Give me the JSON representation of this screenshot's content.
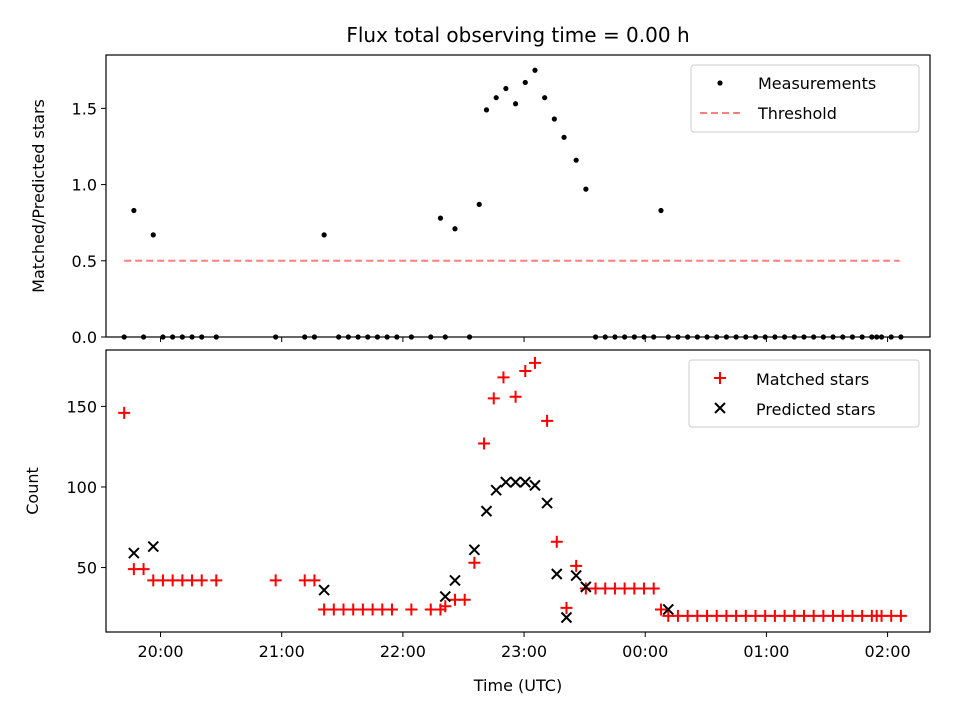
{
  "title": "Flux total observing time = 0.00 h",
  "colors": {
    "measurement": "#000000",
    "threshold": "#ff7f7f",
    "matched": "#ff0000",
    "predicted": "#000000"
  },
  "chart_data": [
    {
      "type": "scatter",
      "ylabel": "Matched/Predicted stars",
      "xlim": [
        -0.45,
        6.35
      ],
      "ylim": [
        0,
        1.85
      ],
      "yticks": [
        0.0,
        0.5,
        1.0,
        1.5
      ],
      "ytick_labels": [
        "0.0",
        "0.5",
        "1.0",
        "1.5"
      ],
      "legend": {
        "placement": "top-right",
        "entries": [
          "Measurements",
          "Threshold"
        ]
      },
      "threshold": {
        "name": "Threshold",
        "x": [
          -0.3,
          6.1
        ],
        "y": 0.5
      },
      "series": [
        {
          "name": "Measurements",
          "marker": "dot",
          "x": [
            -0.3,
            -0.22,
            -0.14,
            -0.06,
            0.02,
            0.1,
            0.18,
            0.26,
            0.34,
            0.46,
            0.95,
            1.19,
            1.27,
            1.35,
            1.47,
            1.55,
            1.63,
            1.71,
            1.79,
            1.87,
            1.95,
            2.07,
            2.23,
            2.31,
            2.35,
            2.43,
            2.55,
            2.63,
            2.69,
            2.77,
            2.85,
            2.93,
            3.01,
            3.09,
            3.17,
            3.25,
            3.33,
            3.43,
            3.51,
            3.59,
            3.67,
            3.75,
            3.83,
            3.91,
            3.99,
            4.07,
            4.13,
            4.19,
            4.27,
            4.35,
            4.43,
            4.51,
            4.59,
            4.67,
            4.75,
            4.83,
            4.91,
            4.99,
            5.07,
            5.15,
            5.23,
            5.31,
            5.39,
            5.47,
            5.55,
            5.63,
            5.71,
            5.79,
            5.87,
            5.91,
            5.95,
            6.03,
            6.11
          ],
          "y": [
            0,
            0.83,
            0,
            0.67,
            0,
            0,
            0,
            0,
            0,
            0,
            0,
            0,
            0,
            0.67,
            0,
            0,
            0,
            0,
            0,
            0,
            0,
            0,
            0,
            0.78,
            0,
            0.71,
            0,
            0.87,
            1.49,
            1.57,
            1.63,
            1.53,
            1.67,
            1.75,
            1.57,
            1.43,
            1.31,
            1.16,
            0.97,
            0,
            0,
            0,
            0,
            0,
            0,
            0,
            0.83,
            0,
            0,
            0,
            0,
            0,
            0,
            0,
            0,
            0,
            0,
            0,
            0,
            0,
            0,
            0,
            0,
            0,
            0,
            0,
            0,
            0,
            0,
            0,
            0,
            0,
            0
          ]
        }
      ]
    },
    {
      "type": "scatter",
      "ylabel": "Count",
      "xlabel": "Time (UTC)",
      "xlim": [
        -0.45,
        6.35
      ],
      "ylim": [
        10,
        185
      ],
      "yticks": [
        50,
        100,
        150
      ],
      "ytick_labels": [
        "50",
        "100",
        "150"
      ],
      "xticks": [
        0,
        1,
        2,
        3,
        4,
        5,
        6
      ],
      "xtick_labels": [
        "20:00",
        "21:00",
        "22:00",
        "23:00",
        "00:00",
        "01:00",
        "02:00"
      ],
      "legend": {
        "placement": "top-right",
        "entries": [
          "Matched stars",
          "Predicted stars"
        ]
      },
      "series": [
        {
          "name": "Matched stars",
          "marker": "plus",
          "x": [
            -0.3,
            -0.22,
            -0.14,
            -0.06,
            0.02,
            0.1,
            0.18,
            0.26,
            0.34,
            0.46,
            0.95,
            1.19,
            1.27,
            1.35,
            1.43,
            1.51,
            1.59,
            1.67,
            1.75,
            1.83,
            1.91,
            2.07,
            2.23,
            2.31,
            2.35,
            2.43,
            2.51,
            2.59,
            2.67,
            2.75,
            2.83,
            2.93,
            3.01,
            3.09,
            3.19,
            3.27,
            3.35,
            3.43,
            3.51,
            3.59,
            3.67,
            3.75,
            3.83,
            3.91,
            3.99,
            4.07,
            4.13,
            4.19,
            4.27,
            4.35,
            4.43,
            4.51,
            4.59,
            4.67,
            4.75,
            4.83,
            4.91,
            4.99,
            5.07,
            5.15,
            5.23,
            5.31,
            5.39,
            5.47,
            5.55,
            5.63,
            5.71,
            5.79,
            5.87,
            5.91,
            5.95,
            6.03,
            6.11
          ],
          "y": [
            146,
            49,
            49,
            42,
            42,
            42,
            42,
            42,
            42,
            42,
            42,
            42,
            42,
            24,
            24,
            24,
            24,
            24,
            24,
            24,
            24,
            24,
            24,
            24,
            26,
            30,
            30,
            53,
            127,
            155,
            168,
            156,
            172,
            177,
            141,
            66,
            25,
            51,
            37,
            37,
            37,
            37,
            37,
            37,
            37,
            37,
            24,
            20,
            20,
            20,
            20,
            20,
            20,
            20,
            20,
            20,
            20,
            20,
            20,
            20,
            20,
            20,
            20,
            20,
            20,
            20,
            20,
            20,
            20,
            20,
            20,
            20,
            20
          ]
        },
        {
          "name": "Predicted stars",
          "marker": "x",
          "x": [
            -0.22,
            -0.06,
            1.35,
            2.35,
            2.43,
            2.59,
            2.69,
            2.77,
            2.85,
            2.93,
            3.01,
            3.09,
            3.19,
            3.27,
            3.35,
            3.43,
            3.51,
            4.19
          ],
          "y": [
            59,
            63,
            36,
            32,
            42,
            61,
            85,
            98,
            103,
            103,
            103,
            101,
            90,
            46,
            19,
            45,
            38,
            24
          ]
        }
      ]
    }
  ]
}
